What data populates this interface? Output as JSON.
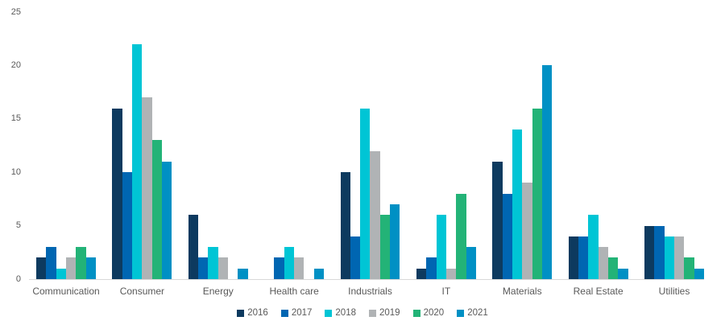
{
  "colors": {
    "background": "#ffffff",
    "axis_line": "#d9d9d9",
    "label_text": "#595959",
    "series_2016": "#0d3a5f",
    "series_2017": "#0066b2",
    "series_2018": "#00c5d5",
    "series_2019": "#b0b3b5",
    "series_2020": "#23b377",
    "series_2021": "#0090c4"
  },
  "chart_data": {
    "type": "bar",
    "categories": [
      "Communication",
      "Consumer",
      "Energy",
      "Health care",
      "Industrials",
      "IT",
      "Materials",
      "Real Estate",
      "Utilities"
    ],
    "series": [
      {
        "name": "2016",
        "color": "#0d3a5f",
        "values": [
          2,
          16,
          6,
          0,
          10,
          1,
          11,
          4,
          5
        ]
      },
      {
        "name": "2017",
        "color": "#0066b2",
        "values": [
          3,
          10,
          2,
          2,
          4,
          2,
          8,
          4,
          5
        ]
      },
      {
        "name": "2018",
        "color": "#00c5d5",
        "values": [
          1,
          22,
          3,
          3,
          16,
          6,
          14,
          6,
          4
        ]
      },
      {
        "name": "2019",
        "color": "#b0b3b5",
        "values": [
          2,
          17,
          2,
          2,
          12,
          1,
          9,
          3,
          4
        ]
      },
      {
        "name": "2020",
        "color": "#23b377",
        "values": [
          3,
          13,
          0,
          0,
          6,
          8,
          16,
          2,
          2
        ]
      },
      {
        "name": "2021",
        "color": "#0090c4",
        "values": [
          2,
          11,
          1,
          1,
          7,
          3,
          20,
          1,
          1
        ]
      }
    ],
    "xlabel": "",
    "ylabel": "",
    "ylim": [
      0,
      25
    ],
    "yticks": [
      0,
      5,
      10,
      15,
      20,
      25
    ],
    "grid": false,
    "legend_position": "bottom"
  }
}
